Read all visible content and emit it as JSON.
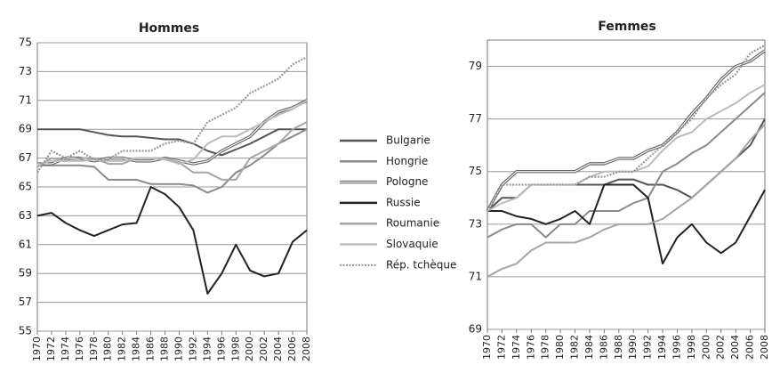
{
  "chart_data": [
    {
      "type": "line",
      "title": "Hommes",
      "legend": "right",
      "x": [
        1970,
        1972,
        1974,
        1976,
        1978,
        1980,
        1982,
        1984,
        1986,
        1988,
        1990,
        1992,
        1994,
        1996,
        1998,
        2000,
        2002,
        2004,
        2006,
        2008
      ],
      "xlim": [
        1970,
        2008
      ],
      "xticks": [
        1970,
        1972,
        1974,
        1976,
        1978,
        1980,
        1982,
        1984,
        1986,
        1988,
        1990,
        1992,
        1994,
        1996,
        1998,
        2000,
        2002,
        2004,
        2006,
        2008
      ],
      "ylim": [
        55,
        75
      ],
      "yticks": [
        55,
        57,
        59,
        61,
        63,
        65,
        67,
        69,
        71,
        73,
        75
      ],
      "grid": true,
      "series": [
        {
          "name": "Bulgarie",
          "color": "#555555",
          "style": "solid",
          "values": [
            69,
            69,
            69,
            69,
            68.8,
            68.6,
            68.5,
            68.5,
            68.4,
            68.3,
            68.3,
            68,
            67.5,
            67.2,
            67.6,
            68,
            68.5,
            69,
            69,
            69
          ]
        },
        {
          "name": "Hongrie",
          "color": "#8a8a8a",
          "style": "solid",
          "values": [
            66.5,
            66.5,
            66.5,
            66.5,
            66.4,
            65.5,
            65.5,
            65.5,
            65.2,
            65.2,
            65.2,
            65.1,
            64.6,
            65,
            66,
            66.5,
            67.2,
            68,
            68.5,
            69
          ]
        },
        {
          "name": "Pologne",
          "color": "#666666",
          "style": "double",
          "values": [
            66.6,
            66.6,
            67,
            67,
            66.8,
            67,
            67,
            66.8,
            66.8,
            67,
            66.8,
            66.6,
            66.8,
            67.5,
            68,
            68.5,
            69.5,
            70.2,
            70.5,
            71
          ]
        },
        {
          "name": "Russie",
          "color": "#222222",
          "style": "solid",
          "values": [
            63,
            63.2,
            62.5,
            62,
            61.6,
            62,
            62.4,
            62.5,
            65,
            64.5,
            63.6,
            62,
            57.6,
            59,
            61,
            59.2,
            58.8,
            59,
            61.2,
            62
          ]
        },
        {
          "name": "Roumanie",
          "color": "#a5a5a5",
          "style": "solid",
          "values": [
            66.4,
            67,
            66.8,
            67,
            67,
            66.6,
            66.6,
            67,
            67,
            67,
            66.7,
            66,
            66,
            65.5,
            65.5,
            67,
            67.5,
            68,
            69,
            69.5
          ]
        },
        {
          "name": "Slovaquie",
          "color": "#bbbbbb",
          "style": "solid",
          "values": [
            66.5,
            66.8,
            66.8,
            66.8,
            66.9,
            66.8,
            66.8,
            67,
            67,
            66.9,
            66.6,
            66.9,
            68,
            68.5,
            68.5,
            69,
            69.5,
            70,
            70.4,
            71
          ]
        },
        {
          "name": "Rép. tchèque",
          "color": "#999999",
          "style": "dotted",
          "values": [
            66,
            67.5,
            67,
            67.5,
            66.9,
            66.9,
            67.5,
            67.5,
            67.5,
            68,
            68.2,
            68,
            69.5,
            70,
            70.5,
            71.5,
            72,
            72.5,
            73.5,
            74
          ]
        }
      ]
    },
    {
      "type": "line",
      "title": "Femmes",
      "x": [
        1970,
        1972,
        1974,
        1976,
        1978,
        1980,
        1982,
        1984,
        1986,
        1988,
        1990,
        1992,
        1994,
        1996,
        1998,
        2000,
        2002,
        2004,
        2006,
        2008
      ],
      "xlim": [
        1970,
        2008
      ],
      "xticks": [
        1970,
        1972,
        1974,
        1976,
        1978,
        1980,
        1982,
        1984,
        1986,
        1988,
        1990,
        1992,
        1994,
        1996,
        1998,
        2000,
        2002,
        2004,
        2006,
        2008
      ],
      "ylim": [
        69,
        80
      ],
      "yticks": [
        69,
        71,
        73,
        75,
        77,
        79
      ],
      "grid": true,
      "series": [
        {
          "color": "#555555",
          "style": "solid",
          "values": [
            73.5,
            74,
            74,
            74.5,
            74.5,
            74.5,
            74.5,
            74.5,
            74.5,
            74.7,
            74.7,
            74.5,
            74.5,
            74.3,
            74,
            74.5,
            75,
            75.5,
            76,
            77
          ]
        },
        {
          "color": "#8a8a8a",
          "style": "solid",
          "values": [
            72.5,
            72.8,
            73,
            73,
            72.5,
            73,
            73,
            73.5,
            73.5,
            73.5,
            73.8,
            74,
            75,
            75.3,
            75.7,
            76,
            76.5,
            77,
            77.5,
            78
          ]
        },
        {
          "color": "#666666",
          "style": "double",
          "values": [
            73.5,
            74.5,
            75,
            75,
            75,
            75,
            75,
            75.3,
            75.3,
            75.5,
            75.5,
            75.8,
            76,
            76.5,
            77.2,
            77.8,
            78.5,
            79,
            79.2,
            79.6
          ]
        },
        {
          "color": "#222222",
          "style": "solid",
          "values": [
            73.5,
            73.5,
            73.3,
            73.2,
            73,
            73.2,
            73.5,
            73,
            74.5,
            74.5,
            74.5,
            74,
            71.5,
            72.5,
            73,
            72.3,
            71.9,
            72.3,
            73.3,
            74.3
          ]
        },
        {
          "color": "#a5a5a5",
          "style": "solid",
          "values": [
            71,
            71.3,
            71.5,
            72,
            72.3,
            72.3,
            72.3,
            72.5,
            72.8,
            73,
            73,
            73,
            73.2,
            73.6,
            74,
            74.5,
            75,
            75.5,
            76.2,
            76.8
          ]
        },
        {
          "color": "#bbbbbb",
          "style": "solid",
          "values": [
            73.5,
            73.8,
            74,
            74.5,
            74.5,
            74.5,
            74.5,
            74.8,
            75,
            75,
            75,
            75.2,
            75.8,
            76.3,
            76.5,
            77,
            77.3,
            77.6,
            78,
            78.3
          ]
        },
        {
          "color": "#999999",
          "style": "dotted",
          "values": [
            73.5,
            74.5,
            74.5,
            74.5,
            74.5,
            74.5,
            74.5,
            74.8,
            74.8,
            75,
            75,
            75.5,
            76,
            76.5,
            77,
            77.8,
            78.3,
            78.7,
            79.5,
            79.8
          ]
        }
      ]
    }
  ]
}
